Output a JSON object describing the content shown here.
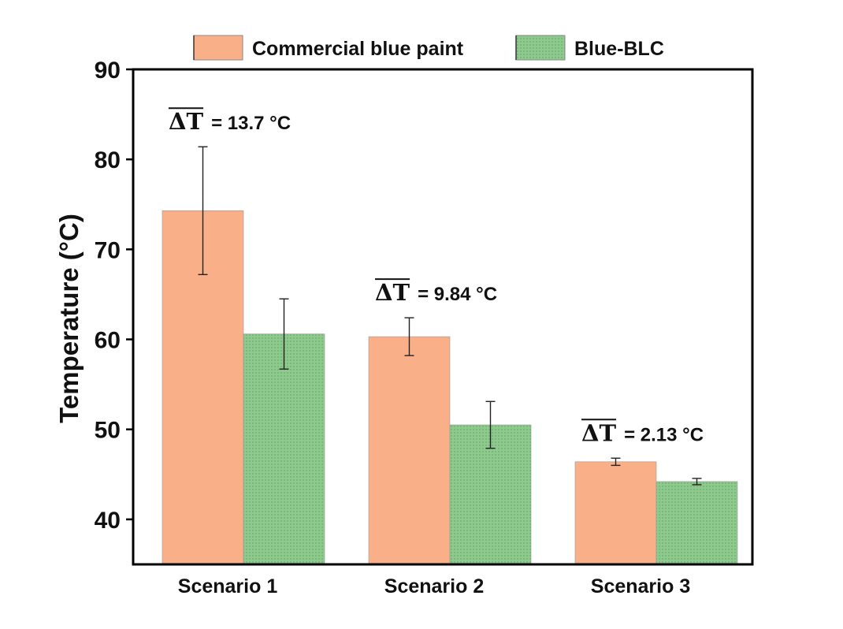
{
  "chart_data": {
    "type": "bar",
    "categories": [
      "Scenario 1",
      "Scenario 2",
      "Scenario 3"
    ],
    "series": [
      {
        "name": "Commercial blue paint",
        "values": [
          74.3,
          60.3,
          46.4
        ],
        "errors": [
          7.1,
          2.1,
          0.4
        ],
        "color": "#f9b088"
      },
      {
        "name": "Blue-BLC",
        "values": [
          60.6,
          50.5,
          44.2
        ],
        "errors": [
          3.9,
          2.6,
          0.35
        ],
        "color": "#8ec98e"
      }
    ],
    "annotations": [
      {
        "category": "Scenario 1",
        "symbol": "ΔT",
        "text": "= 13.7 °C"
      },
      {
        "category": "Scenario 2",
        "symbol": "ΔT",
        "text": "= 9.84 °C"
      },
      {
        "category": "Scenario 3",
        "symbol": "ΔT",
        "text": "= 2.13 °C"
      }
    ],
    "ylabel": "Temperature (°C)",
    "xlabel": "",
    "ylim": [
      35,
      90
    ],
    "yticks": [
      40,
      50,
      60,
      70,
      80,
      90
    ],
    "grid": false,
    "legend_position": "top"
  }
}
